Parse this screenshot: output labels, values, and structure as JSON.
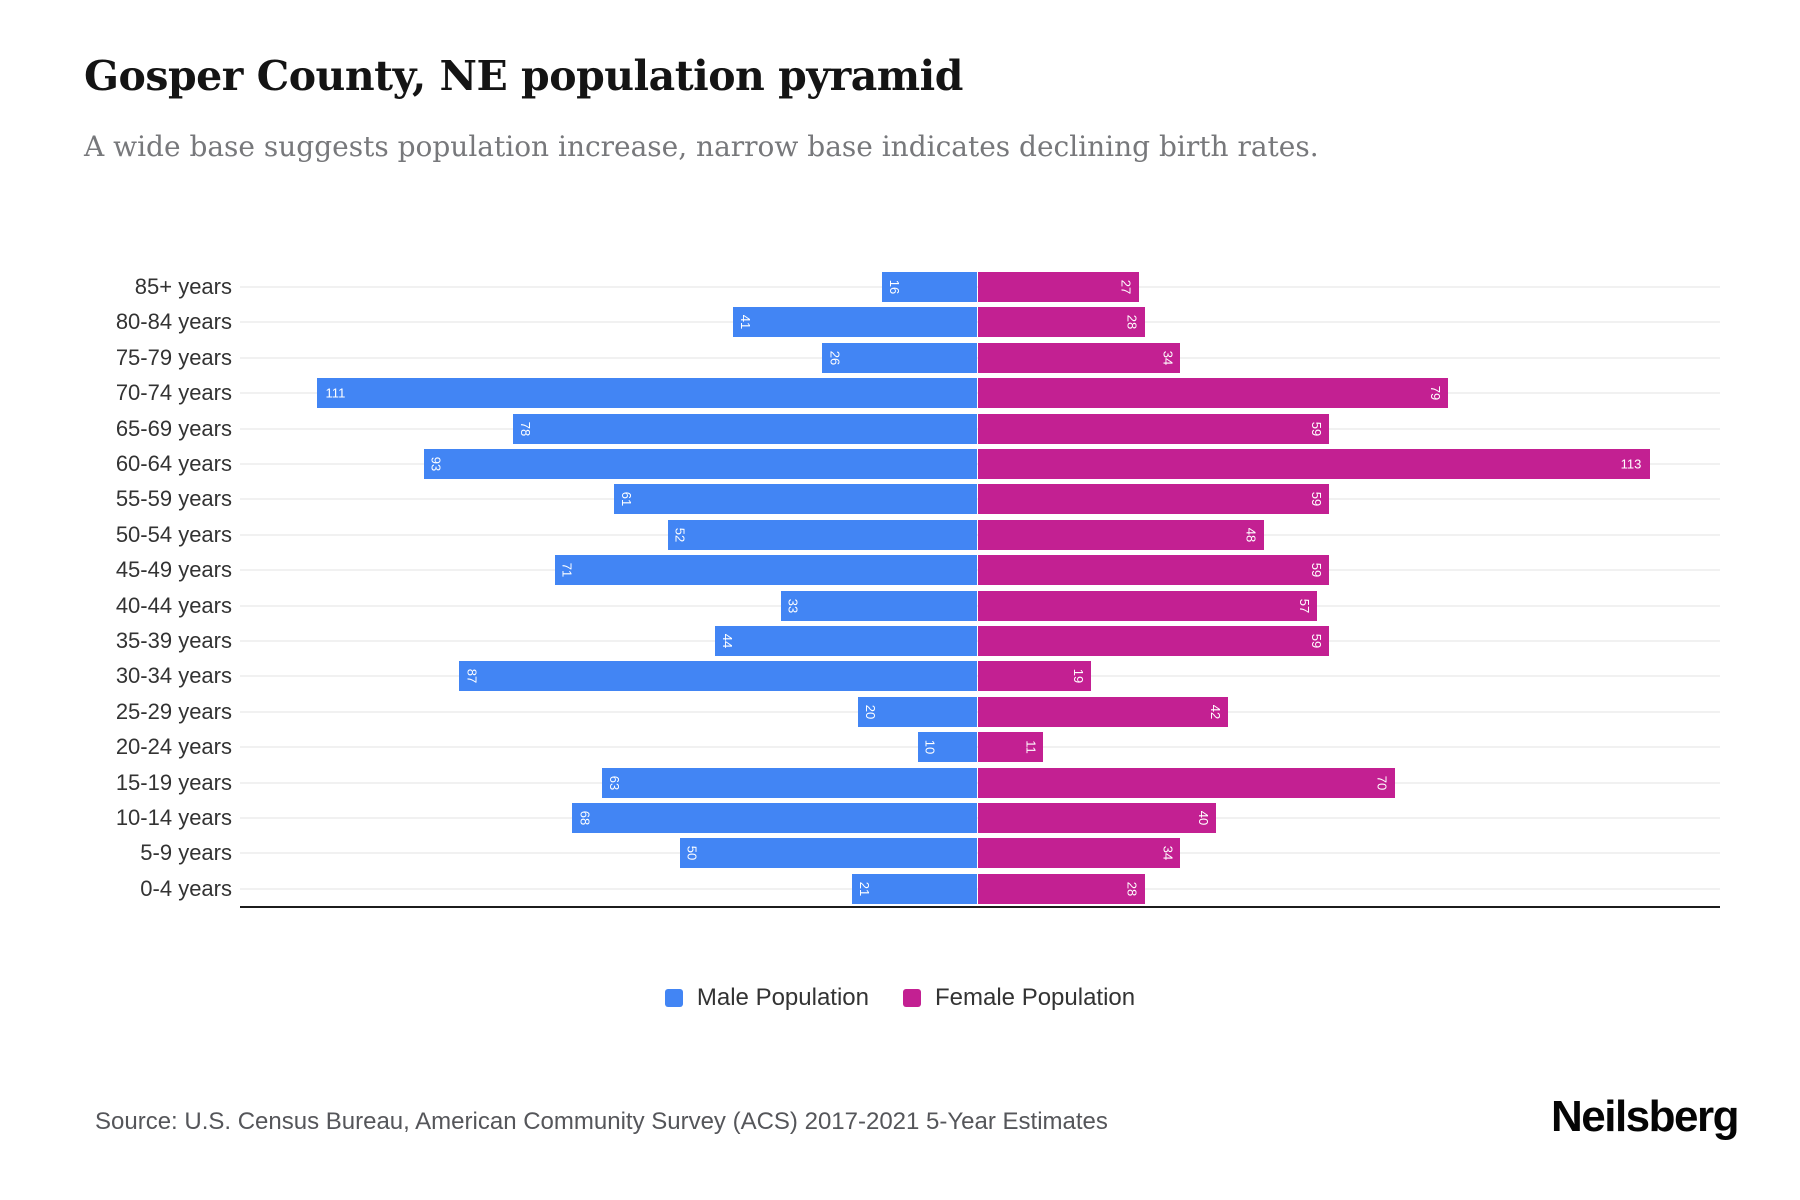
{
  "header": {
    "title": "Gosper County, NE population pyramid",
    "subtitle": "A wide base suggests population increase, narrow base indicates declining birth rates."
  },
  "chart_data": {
    "type": "bar",
    "variant": "population-pyramid",
    "title": "Gosper County, NE population pyramid",
    "categories": [
      "85+ years",
      "80-84 years",
      "75-79 years",
      "70-74 years",
      "65-69 years",
      "60-64 years",
      "55-59 years",
      "50-54 years",
      "45-49 years",
      "40-44 years",
      "35-39 years",
      "30-34 years",
      "25-29 years",
      "20-24 years",
      "15-19 years",
      "10-14 years",
      "5-9 years",
      "0-4 years"
    ],
    "series": [
      {
        "name": "Male Population",
        "side": "left",
        "color": "#4285f4",
        "values": [
          16,
          41,
          26,
          111,
          78,
          93,
          61,
          52,
          71,
          33,
          44,
          87,
          20,
          10,
          63,
          68,
          50,
          21
        ]
      },
      {
        "name": "Female Population",
        "side": "right",
        "color": "#c32092",
        "values": [
          27,
          28,
          34,
          79,
          59,
          113,
          59,
          48,
          59,
          57,
          59,
          19,
          42,
          11,
          70,
          40,
          34,
          28
        ]
      }
    ],
    "value_axis_range_each_side": [
      0,
      120
    ],
    "grid": true,
    "legend_position": "bottom",
    "data_labels": "inside-outer-end"
  },
  "footer": {
    "source": "Source: U.S. Census Bureau, American Community Survey (ACS) 2017-2021 5-Year Estimates",
    "brand": "Neilsberg"
  }
}
